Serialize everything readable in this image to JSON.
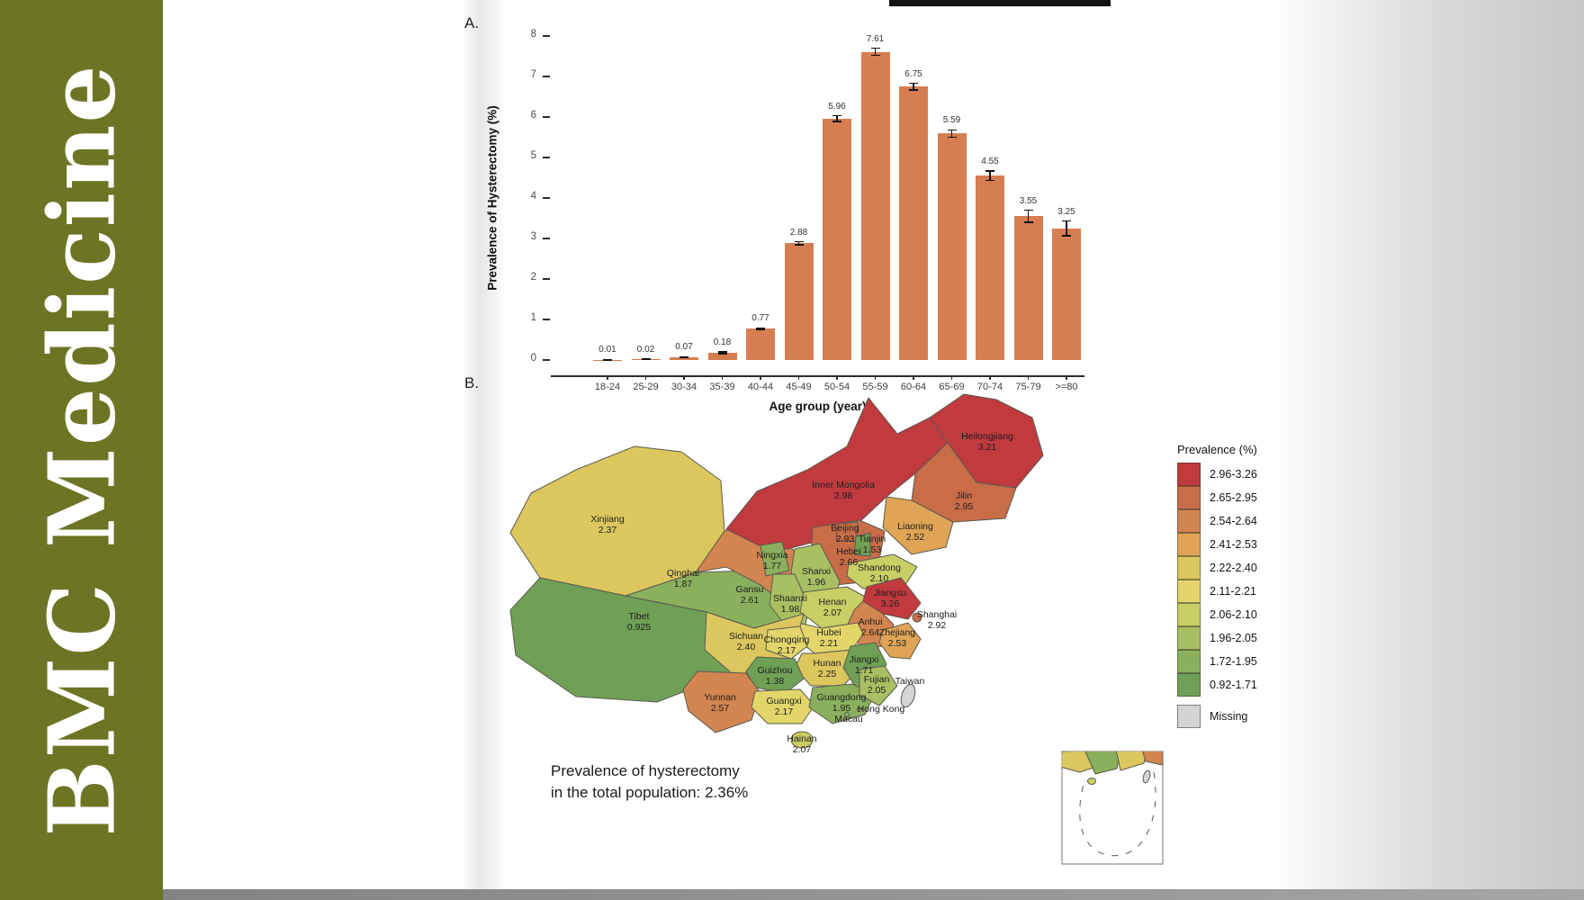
{
  "banner": {
    "journal_title": "BMC Medicine",
    "background": "#6d7424"
  },
  "figure": {
    "panel_a_label": "A.",
    "panel_b_label": "B.",
    "note_line1": "Prevalence of hysterectomy",
    "note_line2": "in the total population: 2.36%"
  },
  "chart_data": [
    {
      "type": "bar",
      "panel": "A",
      "ylabel": "Prevalence of Hysterectomy (%)",
      "xlabel": "Age group (year)",
      "ylim": [
        0,
        8
      ],
      "yticks": [
        0,
        1,
        2,
        3,
        4,
        5,
        6,
        7,
        8
      ],
      "grid": false,
      "bar_color": "#d67d51",
      "error_bar_color": "#111111",
      "categories": [
        "18-24",
        "25-29",
        "30-34",
        "35-39",
        "40-44",
        "45-49",
        "50-54",
        "55-59",
        "60-64",
        "65-69",
        "70-74",
        "75-79",
        ">=80"
      ],
      "values": [
        0.01,
        0.02,
        0.07,
        0.18,
        0.77,
        2.88,
        5.96,
        7.61,
        6.75,
        5.59,
        4.55,
        3.55,
        3.25
      ],
      "value_labels": [
        "0.01",
        "0.02",
        "0.07",
        "0.18",
        "0.77",
        "2.88",
        "5.96",
        "7.61",
        "6.75",
        "5.59",
        "4.55",
        "3.55",
        "3.25"
      ],
      "errors": [
        0.005,
        0.005,
        0.01,
        0.02,
        0.02,
        0.04,
        0.07,
        0.09,
        0.08,
        0.09,
        0.12,
        0.15,
        0.18
      ]
    },
    {
      "type": "choropleth",
      "panel": "B",
      "legend_title": "Prevalence (%)",
      "legend_position": "right",
      "note": "Prevalence of hysterectomy in the total population: 2.36%",
      "legend": [
        {
          "label": "2.96-3.26",
          "color": "#c13a3e"
        },
        {
          "label": "2.65-2.95",
          "color": "#c96c48"
        },
        {
          "label": "2.54-2.64",
          "color": "#d3854f"
        },
        {
          "label": "2.41-2.53",
          "color": "#dfa455"
        },
        {
          "label": "2.22-2.40",
          "color": "#dcc75f"
        },
        {
          "label": "2.11-2.21",
          "color": "#e2d66b"
        },
        {
          "label": "2.06-2.10",
          "color": "#c9ce65"
        },
        {
          "label": "1.96-2.05",
          "color": "#a8bf62"
        },
        {
          "label": "1.72-1.95",
          "color": "#8ab05d"
        },
        {
          "label": "0.92-1.71",
          "color": "#6fa055"
        },
        {
          "label": "Missing",
          "color": "#d4d4d4"
        }
      ],
      "regions": {
        "heilongjiang": {
          "name": "Heilongjiang",
          "value": "3.21",
          "band": "2.96-3.26"
        },
        "jilin": {
          "name": "Jilin",
          "value": "2.95",
          "band": "2.65-2.95"
        },
        "innermongolia": {
          "name": "Inner Mongolia",
          "value": "2.98",
          "band": "2.96-3.26"
        },
        "liaoning": {
          "name": "Liaoning",
          "value": "2.52",
          "band": "2.41-2.53"
        },
        "xinjiang": {
          "name": "Xinjiang",
          "value": "2.37",
          "band": "2.22-2.40"
        },
        "beijing": {
          "name": "Beijing",
          "value": "2.93",
          "band": "2.65-2.95"
        },
        "tianjin": {
          "name": "Tianjin",
          "value": "1.53",
          "band": "0.92-1.71"
        },
        "hebei": {
          "name": "Hebei",
          "value": "2.66",
          "band": "2.65-2.95"
        },
        "ningxia": {
          "name": "Ningxia",
          "value": "1.77",
          "band": "1.72-1.95"
        },
        "shanxi": {
          "name": "Shanxi",
          "value": "1.96",
          "band": "1.96-2.05"
        },
        "shandong": {
          "name": "Shandong",
          "value": "2.10",
          "band": "2.06-2.10"
        },
        "qinghai": {
          "name": "Qinghai",
          "value": "1.87",
          "band": "1.72-1.95"
        },
        "gansu": {
          "name": "Gansu",
          "value": "2.61",
          "band": "2.54-2.64"
        },
        "shaanxi": {
          "name": "Shaanxi",
          "value": "1.98",
          "band": "1.96-2.05"
        },
        "henan": {
          "name": "Henan",
          "value": "2.07",
          "band": "2.06-2.10"
        },
        "jiangsu": {
          "name": "Jiangsu",
          "value": "3.26",
          "band": "2.96-3.26"
        },
        "shanghai": {
          "name": "Shanghai",
          "value": "2.92",
          "band": "2.65-2.95"
        },
        "tibet": {
          "name": "Tibet",
          "value": "0.925",
          "band": "0.92-1.71"
        },
        "sichuan": {
          "name": "Sichuan",
          "value": "2.40",
          "band": "2.22-2.40"
        },
        "chongqing": {
          "name": "Chongqing",
          "value": "2.17",
          "band": "2.11-2.21"
        },
        "hubei": {
          "name": "Hubei",
          "value": "2.21",
          "band": "2.11-2.21"
        },
        "anhui": {
          "name": "Anhui",
          "value": "2.64",
          "band": "2.54-2.64"
        },
        "zhejiang": {
          "name": "Zhejiang",
          "value": "2.53",
          "band": "2.41-2.53"
        },
        "hunan": {
          "name": "Hunan",
          "value": "2.25",
          "band": "2.22-2.40"
        },
        "jiangxi": {
          "name": "Jiangxi",
          "value": "1.71",
          "band": "0.92-1.71"
        },
        "guizhou": {
          "name": "Guizhou",
          "value": "1.38",
          "band": "0.92-1.71"
        },
        "fujian": {
          "name": "Fujian",
          "value": "2.05",
          "band": "1.96-2.05"
        },
        "yunnan": {
          "name": "Yunnan",
          "value": "2.57",
          "band": "2.54-2.64"
        },
        "guangxi": {
          "name": "Guangxi",
          "value": "2.17",
          "band": "2.11-2.21"
        },
        "guangdong": {
          "name": "Guangdong",
          "value": "1.95",
          "band": "1.72-1.95"
        },
        "hainan": {
          "name": "Hainan",
          "value": "2.07",
          "band": "2.06-2.10"
        },
        "taiwan": {
          "name": "Taiwan",
          "value": null,
          "band": "Missing"
        },
        "hongkong": {
          "name": "Hong Kong",
          "value": null
        },
        "macau": {
          "name": "Macau",
          "value": null
        }
      }
    }
  ]
}
